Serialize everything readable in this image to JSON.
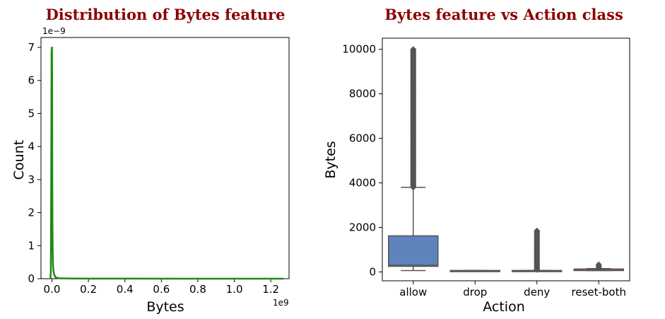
{
  "chart_data": [
    {
      "type": "line",
      "title": "Distribution of Bytes feature",
      "xlabel": "Bytes",
      "ylabel": "Count",
      "x_offset_label": "1e9",
      "y_offset_label": "1e−9",
      "xlim": [
        -0.06,
        1.3
      ],
      "ylim": [
        0,
        7.3
      ],
      "xticks": [
        0.0,
        0.2,
        0.4,
        0.6,
        0.8,
        1.0,
        1.2
      ],
      "xtick_labels": [
        "0.0",
        "0.2",
        "0.4",
        "0.6",
        "0.8",
        "1.0",
        "1.2"
      ],
      "yticks": [
        0,
        1,
        2,
        3,
        4,
        5,
        6,
        7
      ],
      "ytick_labels": [
        "0",
        "1",
        "2",
        "3",
        "4",
        "5",
        "6",
        "7"
      ],
      "grid": false,
      "color": "#1e8a14",
      "series": [
        {
          "x": [
            -0.008,
            -0.006,
            -0.004,
            -0.002,
            0.0,
            0.001,
            0.002,
            0.003,
            0.004,
            0.006,
            0.008,
            0.012,
            0.02,
            0.04,
            0.1,
            0.4,
            0.8,
            1.27
          ],
          "y": [
            0.0,
            0.25,
            2.9,
            6.9,
            7.02,
            6.2,
            3.0,
            1.5,
            0.9,
            0.4,
            0.25,
            0.12,
            0.04,
            0.01,
            0.005,
            0.002,
            0.001,
            0.001
          ]
        }
      ]
    },
    {
      "type": "box",
      "title": "Bytes feature vs Action class",
      "xlabel": "Action",
      "ylabel": "Bytes",
      "categories": [
        "allow",
        "drop",
        "deny",
        "reset-both"
      ],
      "ylim": [
        -400,
        10500
      ],
      "yticks": [
        0,
        2000,
        4000,
        6000,
        8000,
        10000
      ],
      "ytick_labels": [
        "0",
        "2000",
        "4000",
        "6000",
        "8000",
        "10000"
      ],
      "grid": false,
      "colors": {
        "allow": "#5f83bd",
        "drop": "#d9813e",
        "deny": "#57a55b",
        "reset-both": "#c94d4e",
        "line": "#555555"
      },
      "boxes": [
        {
          "category": "allow",
          "q1": 250,
          "median": 300,
          "q3": 1620,
          "whisker_low": 60,
          "whisker_high": 3800,
          "outliers_range": [
            3800,
            10000
          ]
        },
        {
          "category": "drop",
          "q1": 60,
          "median": 60,
          "q3": 60,
          "whisker_low": 60,
          "whisker_high": 60,
          "outliers_range": null
        },
        {
          "category": "deny",
          "q1": 60,
          "median": 60,
          "q3": 60,
          "whisker_low": 60,
          "whisker_high": 60,
          "outliers_range": [
            100,
            1850
          ]
        },
        {
          "category": "reset-both",
          "q1": 60,
          "median": 70,
          "q3": 130,
          "whisker_low": 60,
          "whisker_high": 150,
          "outliers_range": [
            180,
            330
          ]
        }
      ]
    }
  ]
}
